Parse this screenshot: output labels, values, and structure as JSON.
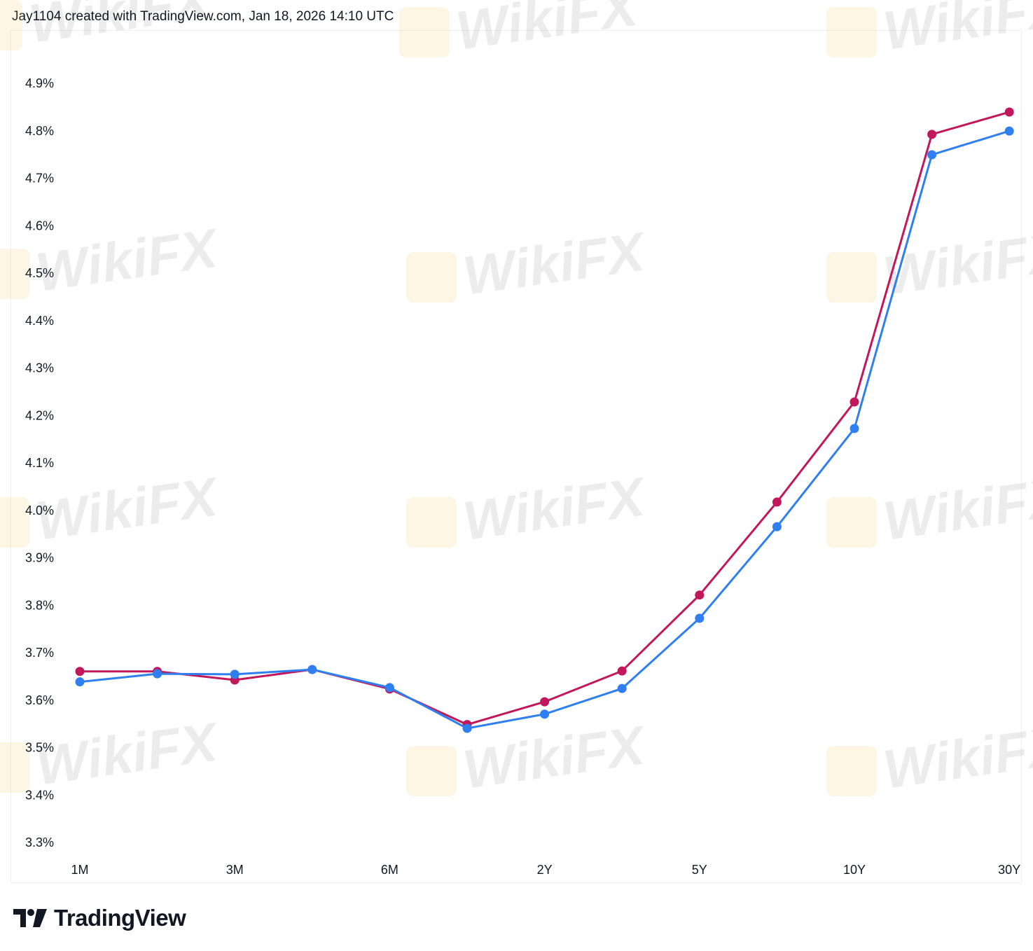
{
  "header": {
    "credit": "Jay1104 created with TradingView.com, Jan 18, 2026 14:10 UTC"
  },
  "footer": {
    "logo_text": "TradingView"
  },
  "watermark": "WikiFX",
  "chart_data": {
    "type": "line",
    "title": "",
    "xlabel": "",
    "ylabel": "",
    "categories": [
      "1M",
      "",
      "3M",
      "",
      "6M",
      "",
      "2Y",
      "",
      "5Y",
      "",
      "10Y",
      "",
      "30Y"
    ],
    "y_ticks": [
      "4.9%",
      "4.8%",
      "4.7%",
      "4.6%",
      "4.5%",
      "4.4%",
      "4.3%",
      "4.2%",
      "4.1%",
      "4.0%",
      "3.9%",
      "3.8%",
      "3.7%",
      "3.6%",
      "3.5%",
      "3.4%",
      "3.3%"
    ],
    "ylim": [
      3.3,
      4.9
    ],
    "y_unit": "%",
    "grid": false,
    "series": [
      {
        "color": "#c2185b",
        "values": [
          3.659,
          3.659,
          3.641,
          3.663,
          3.622,
          3.547,
          3.595,
          3.66,
          3.82,
          4.016,
          4.227,
          4.791,
          4.838
        ]
      },
      {
        "color": "#2f7ff0",
        "values": [
          3.637,
          3.654,
          3.653,
          3.663,
          3.625,
          3.539,
          3.569,
          3.623,
          3.771,
          3.964,
          4.171,
          4.748,
          4.798
        ]
      }
    ]
  }
}
